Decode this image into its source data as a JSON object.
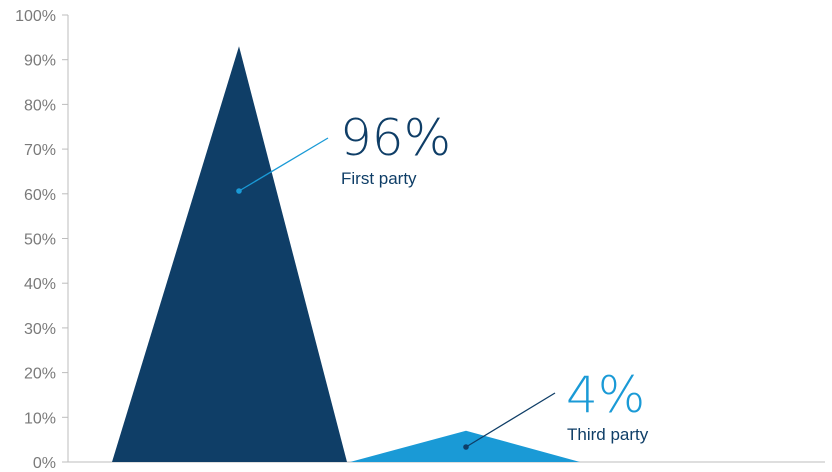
{
  "chart_data": {
    "type": "area",
    "ylim": [
      0,
      100
    ],
    "y_ticks": [
      "0%",
      "10%",
      "20%",
      "30%",
      "40%",
      "50%",
      "60%",
      "70%",
      "80%",
      "90%",
      "100%"
    ],
    "grid": false,
    "series": [
      {
        "name": "First party",
        "value": 96,
        "peak": 93,
        "value_label": "96%",
        "color": "#0f3e67",
        "leader_color": "#1a9ad6"
      },
      {
        "name": "Third party",
        "value": 4,
        "peak": 7,
        "value_label": "4%",
        "color": "#1a9ad6",
        "leader_color": "#0f3e67"
      }
    ]
  }
}
